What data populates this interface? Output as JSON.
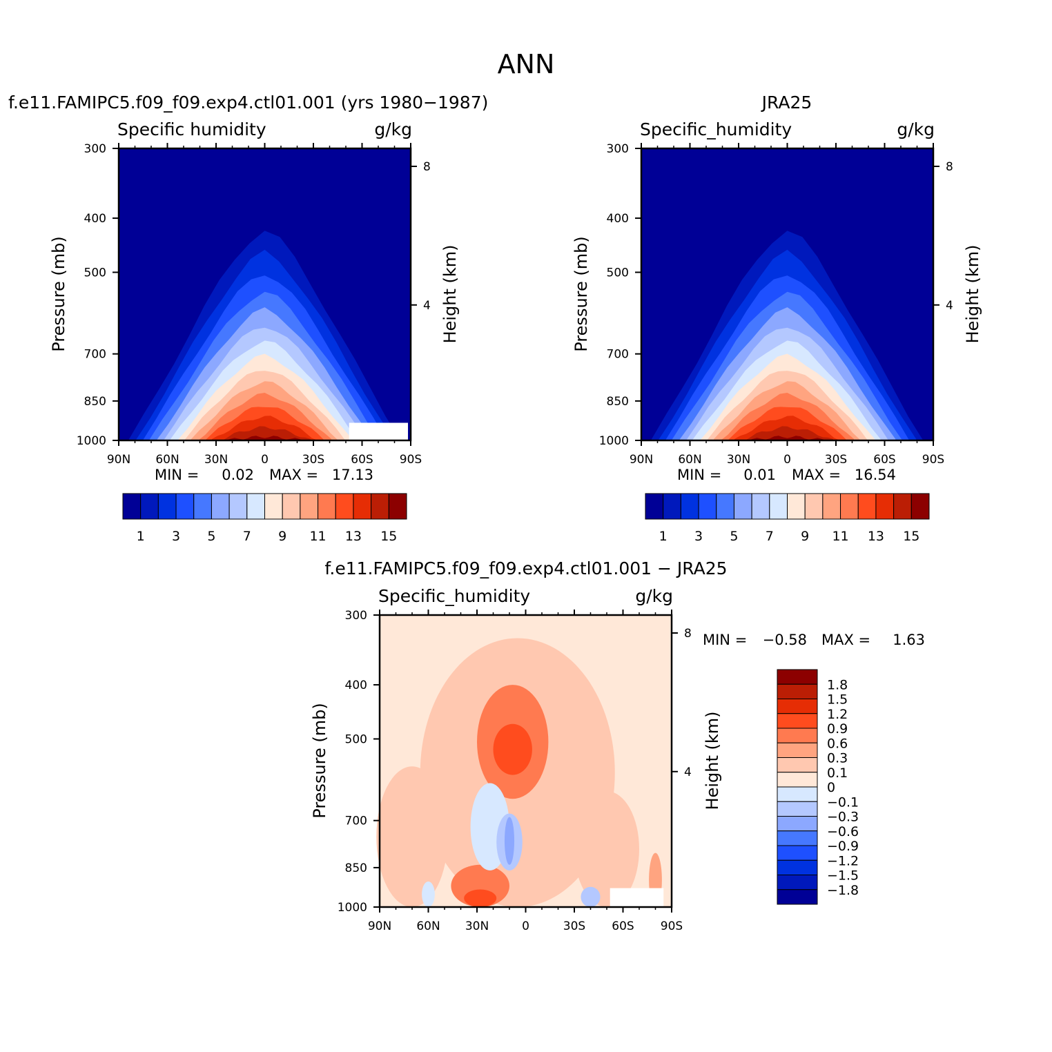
{
  "figure": {
    "title": "ANN",
    "diff_stats": {
      "min_label": "MIN =",
      "min": "−0.58",
      "max_label": "MAX =",
      "max": "1.63"
    }
  },
  "chart_data": [
    {
      "type": "heatmap",
      "id": "model",
      "title": "f.e11.FAMIPC5.f09_f09.exp4.ctl01.001 (yrs 1980−1987)",
      "left_label": "Specific humidity",
      "right_label": "g/kg",
      "xlabel": "",
      "ylabel": "Pressure (mb)",
      "ylabel_right": "Height (km)",
      "x_ticks": [
        "90N",
        "60N",
        "30N",
        "0",
        "30S",
        "60S",
        "90S"
      ],
      "y_ticks": [
        300,
        400,
        500,
        700,
        850,
        1000
      ],
      "y_log": true,
      "yright_ticks": [
        8,
        4
      ],
      "stats": {
        "min_label": "MIN =",
        "min": "0.02",
        "max_label": "MAX =",
        "max": "17.13"
      },
      "peak": {
        "lat": 0,
        "p": 1000,
        "value": 17.13
      },
      "colorbar_labels": [
        "1",
        "3",
        "5",
        "7",
        "9",
        "11",
        "13",
        "15"
      ]
    },
    {
      "type": "heatmap",
      "id": "obs",
      "title": "JRA25",
      "left_label": "Specific_humidity",
      "right_label": "g/kg",
      "xlabel": "",
      "ylabel": "Pressure (mb)",
      "ylabel_right": "Height (km)",
      "x_ticks": [
        "90N",
        "60N",
        "30N",
        "0",
        "30S",
        "60S",
        "90S"
      ],
      "y_ticks": [
        300,
        400,
        500,
        700,
        850,
        1000
      ],
      "y_log": true,
      "yright_ticks": [
        8,
        4
      ],
      "stats": {
        "min_label": "MIN =",
        "min": "0.01",
        "max_label": "MAX =",
        "max": "16.54"
      },
      "peak": {
        "lat": 0,
        "p": 1000,
        "value": 16.54
      },
      "colorbar_labels": [
        "1",
        "3",
        "5",
        "7",
        "9",
        "11",
        "13",
        "15"
      ]
    },
    {
      "type": "heatmap",
      "id": "diff",
      "title": "f.e11.FAMIPC5.f09_f09.exp4.ctl01.001 − JRA25",
      "left_label": "Specific_humidity",
      "right_label": "g/kg",
      "xlabel": "",
      "ylabel": "Pressure (mb)",
      "ylabel_right": "Height (km)",
      "x_ticks": [
        "90N",
        "60N",
        "30N",
        "0",
        "30S",
        "60S",
        "90S"
      ],
      "y_ticks": [
        300,
        400,
        500,
        700,
        850,
        1000
      ],
      "y_log": true,
      "yright_ticks": [
        8,
        4
      ],
      "colorbar_labels": [
        "1.8",
        "1.5",
        "1.2",
        "0.9",
        "0.6",
        "0.3",
        "0.1",
        "0",
        "−0.1",
        "−0.3",
        "−0.6",
        "−0.9",
        "−1.2",
        "−1.5",
        "−1.8"
      ]
    }
  ],
  "colors": {
    "abs_levels": [
      "#000096",
      "#0019bc",
      "#0032e0",
      "#1e50ff",
      "#4678ff",
      "#8ca8ff",
      "#b4c8ff",
      "#d7e8ff",
      "#ffe8d8",
      "#ffc8b0",
      "#ffa480",
      "#ff7a50",
      "#ff4c1e",
      "#e62d05",
      "#bb1e05",
      "#8c0000"
    ],
    "diff_levels": [
      "#8c0000",
      "#bb1e05",
      "#e62d05",
      "#ff4c1e",
      "#ff7a50",
      "#ffa480",
      "#ffc8b0",
      "#ffe8d8",
      "#d7e8ff",
      "#b4c8ff",
      "#8ca8ff",
      "#4678ff",
      "#1e50ff",
      "#0032e0",
      "#0019bc",
      "#000096"
    ]
  }
}
